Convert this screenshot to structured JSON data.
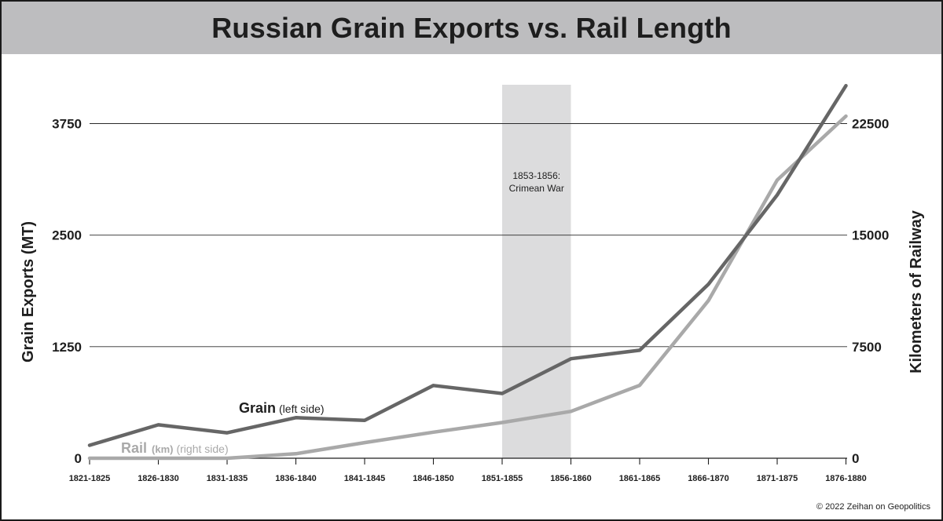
{
  "title": "Russian Grain Exports vs. Rail Length",
  "credit": "© 2022 Zeihan on Geopolitics",
  "chart_data": {
    "type": "line",
    "categories": [
      "1821-1825",
      "1826-1830",
      "1831-1835",
      "1836-1840",
      "1841-1845",
      "1846-1850",
      "1851-1855",
      "1856-1860",
      "1861-1865",
      "1866-1870",
      "1871-1875",
      "1876-1880"
    ],
    "series": [
      {
        "name": "Grain",
        "note": "(left side)",
        "axis": "left",
        "color": "#666666",
        "values": [
          145,
          375,
          285,
          455,
          425,
          815,
          725,
          1115,
          1210,
          1950,
          2950,
          4175
        ]
      },
      {
        "name": "Rail",
        "unit": "(km)",
        "note": "(right side)",
        "axis": "right",
        "color": "#a9a9a9",
        "values": [
          0,
          0,
          0,
          300,
          1050,
          1750,
          2400,
          3150,
          4900,
          10600,
          18700,
          23000
        ]
      }
    ],
    "ylabel": "Grain Exports (MT)",
    "ylabel_right": "Kilometers of Railway",
    "yticks": [
      "0",
      "1250",
      "2500",
      "3750"
    ],
    "yticks_right": [
      "0",
      "7500",
      "15000",
      "22500"
    ],
    "ylim": [
      0,
      3750
    ],
    "ylim_right": [
      0,
      22500
    ],
    "grid": true,
    "annotation": {
      "text": [
        "1853-1856:",
        "Crimean War"
      ],
      "span": [
        "1851-1855",
        "1856-1860"
      ]
    }
  }
}
